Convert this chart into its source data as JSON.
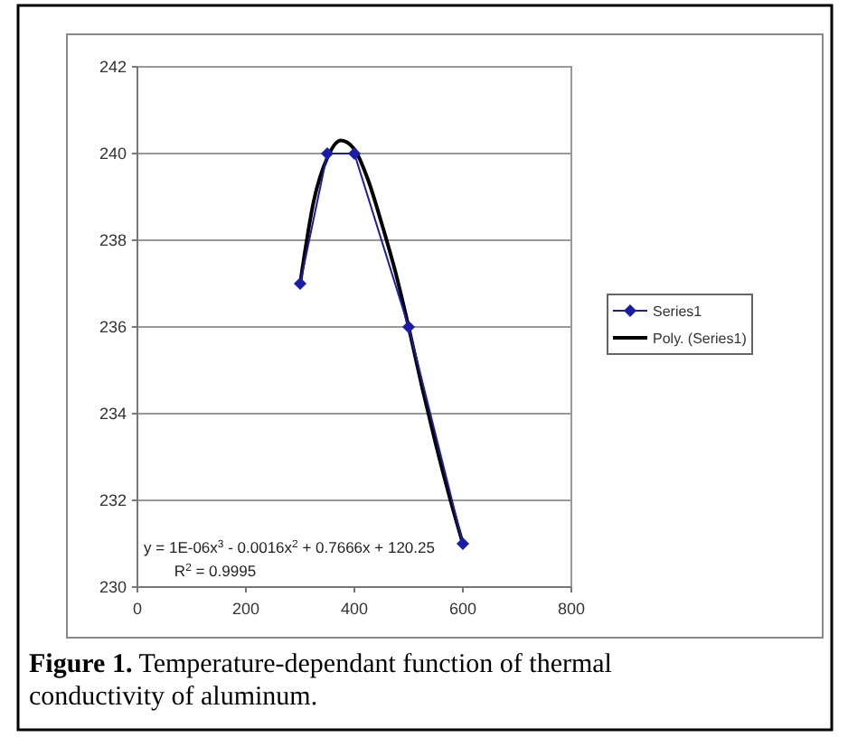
{
  "chart_data": {
    "type": "line",
    "x": [
      300,
      350,
      400,
      500,
      600
    ],
    "series": [
      {
        "name": "Series1",
        "color": "#1c1ca8",
        "values": [
          237,
          240,
          240,
          236,
          231
        ],
        "marker": "diamond"
      },
      {
        "name": "Poly. (Series1)",
        "color": "#000000",
        "type": "line",
        "marker": "none",
        "x": [
          300,
          325,
          350,
          375,
          400,
          425,
          450,
          475,
          500,
          525,
          550,
          575,
          600
        ],
        "values": [
          237,
          238.9,
          239.9,
          240.3,
          240.1,
          239.4,
          238.4,
          237.3,
          236,
          234.6,
          233.3,
          232.1,
          231
        ]
      }
    ],
    "xlim": [
      0,
      800
    ],
    "xticks": [
      0,
      200,
      400,
      600,
      800
    ],
    "ylim": [
      230,
      242
    ],
    "yticks": [
      230,
      232,
      234,
      236,
      238,
      240,
      242
    ],
    "grid": "y",
    "legend": "right",
    "annotations": [
      "y = 1E-06x$^{3}$ - 0.0016x$^{2}$ + 0.7666x + 120.25",
      "R$^{2}$ = 0.9995",
      "Figure 1.",
      "Temperature-dependant function of thermal conductivity of aluminum."
    ]
  }
}
